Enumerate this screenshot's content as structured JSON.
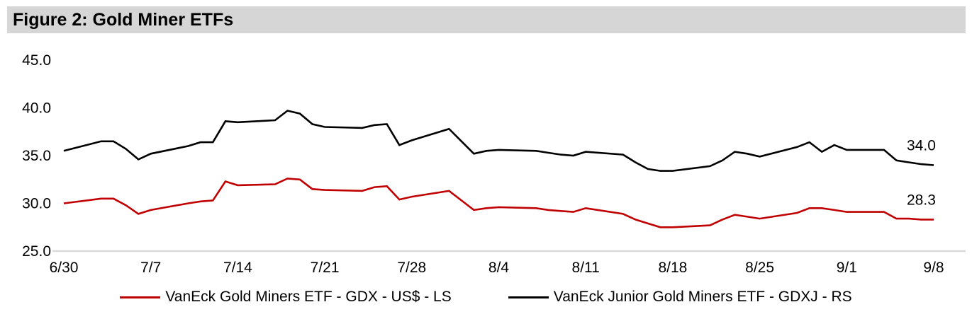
{
  "title": "Figure 2: Gold Miner ETFs",
  "colors": {
    "title_bar_bg": "#d6d6d6",
    "axis_line": "#d9d9d9",
    "text": "#000000",
    "gdx_line": "#c00000",
    "gdxj_line": "#000000"
  },
  "legend": {
    "position": "bottom",
    "items": [
      {
        "label": "VanEck Gold Miners ETF  - GDX  - US$ - LS",
        "color": "#c00000"
      },
      {
        "label": "VanEck Junior Gold Miners ETF - GDXJ - RS",
        "color": "#000000"
      }
    ]
  },
  "chart_data": {
    "type": "line",
    "title": "Figure 2: Gold Miner ETFs",
    "xlabel": "",
    "ylabel": "",
    "ylim": [
      25.0,
      45.0
    ],
    "y_ticks": [
      45.0,
      40.0,
      35.0,
      30.0,
      25.0
    ],
    "y_tick_format": "one-decimal",
    "x_tick_labels": [
      "6/30",
      "7/7",
      "7/14",
      "7/21",
      "7/28",
      "8/4",
      "8/11",
      "8/18",
      "8/25",
      "9/1",
      "9/8"
    ],
    "grid": false,
    "legend_position": "bottom",
    "x": [
      "6/30",
      "7/3",
      "7/4",
      "7/5",
      "7/6",
      "7/7",
      "7/10",
      "7/11",
      "7/12",
      "7/13",
      "7/14",
      "7/17",
      "7/18",
      "7/19",
      "7/20",
      "7/21",
      "7/24",
      "7/25",
      "7/26",
      "7/27",
      "7/28",
      "7/31",
      "8/1",
      "8/2",
      "8/3",
      "8/4",
      "8/7",
      "8/8",
      "8/9",
      "8/10",
      "8/11",
      "8/14",
      "8/15",
      "8/16",
      "8/17",
      "8/18",
      "8/21",
      "8/22",
      "8/23",
      "8/24",
      "8/25",
      "8/28",
      "8/29",
      "8/30",
      "8/31",
      "9/1",
      "9/4",
      "9/5",
      "9/6",
      "9/7",
      "9/8"
    ],
    "series": [
      {
        "name": "VanEck Gold Miners ETF  - GDX  - US$ - LS",
        "color": "#c00000",
        "end_label": "28.3",
        "values": [
          30.0,
          30.5,
          30.5,
          29.8,
          28.9,
          29.3,
          30.0,
          30.2,
          30.3,
          32.3,
          31.9,
          32.0,
          32.6,
          32.5,
          31.5,
          31.4,
          31.3,
          31.7,
          31.8,
          30.4,
          30.7,
          31.3,
          30.3,
          29.3,
          29.5,
          29.6,
          29.5,
          29.3,
          29.2,
          29.1,
          29.5,
          28.9,
          28.3,
          27.9,
          27.5,
          27.5,
          27.7,
          28.3,
          28.8,
          28.6,
          28.4,
          29.0,
          29.5,
          29.5,
          29.3,
          29.1,
          29.1,
          28.4,
          28.4,
          28.3,
          28.3
        ]
      },
      {
        "name": "VanEck Junior Gold Miners ETF - GDXJ - RS",
        "color": "#000000",
        "end_label": "34.0",
        "values": [
          35.5,
          36.5,
          36.5,
          35.7,
          34.6,
          35.2,
          36.0,
          36.4,
          36.4,
          38.6,
          38.5,
          38.7,
          39.7,
          39.4,
          38.3,
          38.0,
          37.9,
          38.2,
          38.3,
          36.1,
          36.6,
          37.8,
          36.5,
          35.2,
          35.5,
          35.6,
          35.5,
          35.3,
          35.1,
          35.0,
          35.4,
          35.1,
          34.3,
          33.6,
          33.4,
          33.4,
          33.9,
          34.5,
          35.4,
          35.2,
          34.9,
          35.9,
          36.4,
          35.4,
          36.1,
          35.6,
          35.6,
          34.5,
          34.3,
          34.1,
          34.0
        ]
      }
    ]
  }
}
